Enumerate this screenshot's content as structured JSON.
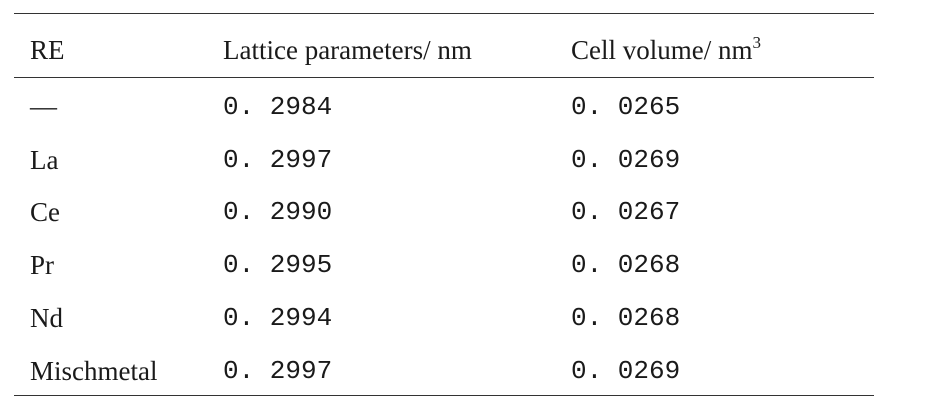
{
  "table": {
    "headers": {
      "re": "RE",
      "lattice": "Lattice parameters/ nm",
      "volume_base": "Cell volume/ nm",
      "volume_sup": "3"
    },
    "rows": [
      {
        "re": "—",
        "lattice": "0. 2984",
        "volume": "0. 0265"
      },
      {
        "re": "La",
        "lattice": "0. 2997",
        "volume": "0. 0269"
      },
      {
        "re": "Ce",
        "lattice": "0. 2990",
        "volume": "0. 0267"
      },
      {
        "re": "Pr",
        "lattice": "0. 2995",
        "volume": "0. 0268"
      },
      {
        "re": "Nd",
        "lattice": "0. 2994",
        "volume": "0. 0268"
      },
      {
        "re": "Mischmetal",
        "lattice": "0. 2997",
        "volume": "0. 0269"
      }
    ]
  }
}
